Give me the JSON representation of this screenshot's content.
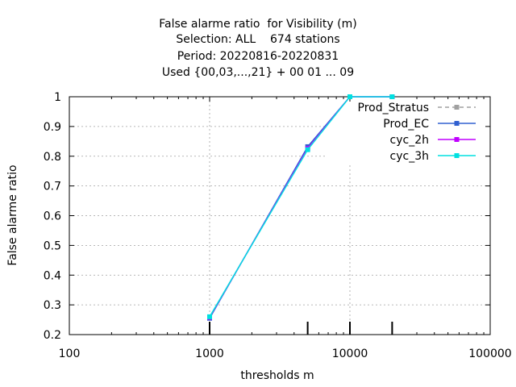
{
  "chart_data": {
    "type": "line",
    "title_lines": [
      "False alarme ratio  for Visibility (m)",
      "Selection: ALL    674 stations",
      "Period: 20220816-20220831",
      "Used {00,03,...,21} + 00 01 ... 09"
    ],
    "xlabel": "thresholds m",
    "ylabel": "False alarme ratio",
    "xscale": "log",
    "xlim": [
      100,
      100000
    ],
    "ylim": [
      0.2,
      1.0
    ],
    "xticks": [
      100,
      1000,
      10000,
      100000
    ],
    "xtick_labels": [
      "100",
      "1000",
      "10000",
      "100000"
    ],
    "yticks": [
      0.2,
      0.3,
      0.4,
      0.5,
      0.6,
      0.7,
      0.8,
      0.9,
      1.0
    ],
    "ytick_labels": [
      "0.2",
      "0.3",
      "0.4",
      "0.5",
      "0.6",
      "0.7",
      "0.8",
      "0.9",
      "1"
    ],
    "grid": true,
    "legend_position": "top-right",
    "count_ticks_x": [
      1000,
      5000,
      10000,
      20000
    ],
    "series": [
      {
        "name": "Prod_Stratus",
        "color": "#a0a0a0",
        "dash": true,
        "x": [],
        "y": []
      },
      {
        "name": "Prod_EC",
        "color": "#3060d0",
        "dash": false,
        "x": [
          1000,
          5000,
          10000,
          20000
        ],
        "y": [
          0.255,
          0.832,
          1.0,
          1.0
        ]
      },
      {
        "name": "cyc_2h",
        "color": "#c000ff",
        "dash": false,
        "x": [
          1000,
          5000,
          10000,
          20000
        ],
        "y": [
          0.258,
          0.826,
          1.0,
          1.0
        ]
      },
      {
        "name": "cyc_3h",
        "color": "#00e0e0",
        "dash": false,
        "x": [
          1000,
          5000,
          10000,
          20000
        ],
        "y": [
          0.26,
          0.822,
          1.0,
          1.0
        ]
      }
    ]
  }
}
